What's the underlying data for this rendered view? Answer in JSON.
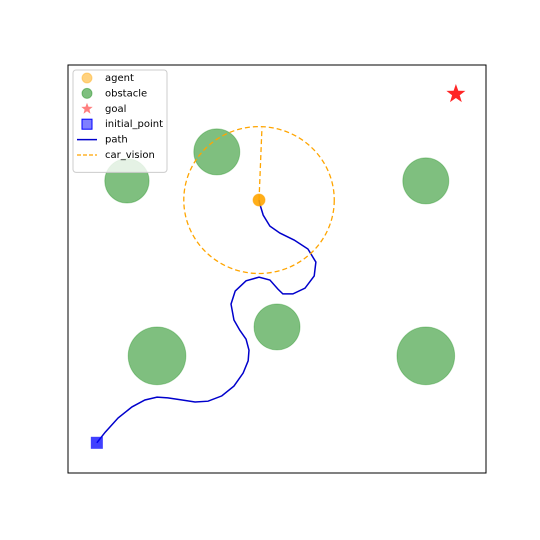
{
  "chart_data": {
    "type": "scatter",
    "xlim": [
      0,
      10
    ],
    "ylim": [
      0,
      10
    ],
    "legend": "upper left",
    "series": [
      {
        "name": "agent",
        "marker": "circle",
        "color": "#ffa500",
        "alpha": 0.9,
        "x": [
          4.57
        ],
        "y": [
          6.69
        ]
      },
      {
        "name": "obstacle",
        "marker": "circle",
        "color": "#008000",
        "alpha": 0.5,
        "x": [
          1.41,
          3.56,
          8.56,
          5.0,
          2.13,
          8.56
        ],
        "y": [
          7.16,
          7.87,
          7.16,
          3.58,
          2.87,
          2.87
        ],
        "radius": [
          0.53,
          0.55,
          0.55,
          0.55,
          0.69,
          0.69
        ]
      },
      {
        "name": "goal",
        "marker": "star",
        "color": "#ff0000",
        "alpha": 0.85,
        "x": [
          9.28
        ],
        "y": [
          9.29
        ]
      },
      {
        "name": "initial_point",
        "marker": "square",
        "color": "#0000ff",
        "alpha": 0.75,
        "x": [
          0.69
        ],
        "y": [
          0.74
        ]
      },
      {
        "name": "path",
        "marker": "line",
        "color": "#0000cc",
        "alpha": 1,
        "x": [
          0.69,
          0.89,
          1.2,
          1.53,
          1.84,
          2.13,
          2.39,
          2.73,
          3.04,
          3.35,
          3.68,
          3.97,
          4.19,
          4.31,
          4.33,
          4.26,
          4.11,
          3.97,
          3.9,
          4.0,
          4.26,
          4.57,
          4.83,
          5.02,
          5.14,
          5.38,
          5.67,
          5.89,
          5.93,
          5.74,
          5.41,
          5.07,
          4.83,
          4.67,
          4.59,
          4.57
        ],
        "y": [
          0.74,
          1.0,
          1.35,
          1.62,
          1.79,
          1.86,
          1.84,
          1.79,
          1.74,
          1.76,
          1.89,
          2.13,
          2.45,
          2.75,
          3.01,
          3.28,
          3.5,
          3.75,
          4.14,
          4.46,
          4.71,
          4.8,
          4.73,
          4.51,
          4.39,
          4.39,
          4.53,
          4.83,
          5.17,
          5.49,
          5.71,
          5.88,
          6.05,
          6.32,
          6.59,
          6.69
        ]
      },
      {
        "name": "car_vision",
        "marker": "dashed",
        "color": "#ffa500",
        "alpha": 1,
        "x": [
          4.57,
          4.64
        ],
        "y": [
          6.69,
          8.46
        ],
        "radius": [
          1.8
        ]
      }
    ]
  }
}
